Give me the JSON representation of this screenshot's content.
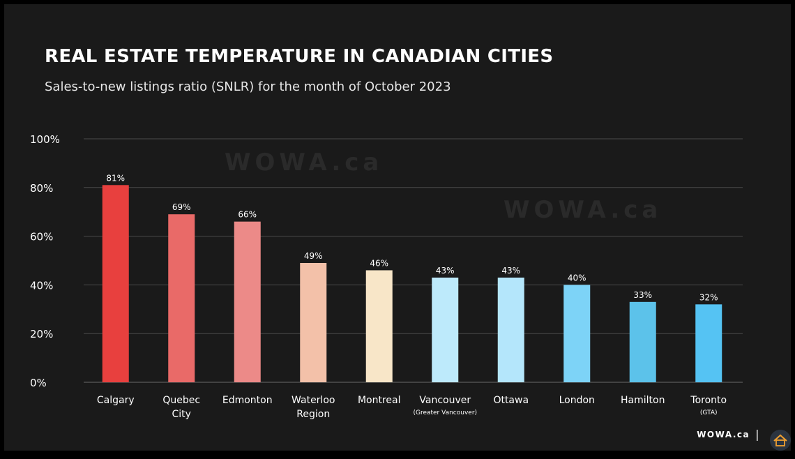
{
  "title": "REAL ESTATE TEMPERATURE IN CANADIAN CITIES",
  "subtitle": "Sales-to-new listings ratio (SNLR) for the month of October 2023",
  "watermark": "WOWA.ca",
  "footer": {
    "brand": "WOWA.ca",
    "separator": "|",
    "logo_icon": "house-logo-icon"
  },
  "chart_data": {
    "type": "bar",
    "title": "REAL ESTATE TEMPERATURE IN CANADIAN CITIES",
    "subtitle": "Sales-to-new listings ratio (SNLR) for the month of October 2023",
    "xlabel": "",
    "ylabel": "",
    "ylim": [
      0,
      100
    ],
    "yticks": [
      "0%",
      "20%",
      "40%",
      "60%",
      "80%",
      "100%"
    ],
    "grid": true,
    "legend": "none",
    "categories": [
      {
        "name": "Calgary",
        "sub": "",
        "value": 81,
        "label": "81%",
        "color": "#e8403e"
      },
      {
        "name": "Quebec City",
        "sub": "",
        "value": 69,
        "label": "69%",
        "color": "#e96a68"
      },
      {
        "name": "Edmonton",
        "sub": "",
        "value": 66,
        "label": "66%",
        "color": "#ec8a88"
      },
      {
        "name": "Waterloo Region",
        "sub": "",
        "value": 49,
        "label": "49%",
        "color": "#f3c1a9"
      },
      {
        "name": "Montreal",
        "sub": "",
        "value": 46,
        "label": "46%",
        "color": "#f8e6c8"
      },
      {
        "name": "Vancouver",
        "sub": "(Greater Vancouver)",
        "value": 43,
        "label": "43%",
        "color": "#bdeafb"
      },
      {
        "name": "Ottawa",
        "sub": "",
        "value": 43,
        "label": "43%",
        "color": "#b4e6fb"
      },
      {
        "name": "London",
        "sub": "",
        "value": 40,
        "label": "40%",
        "color": "#7dd3f7"
      },
      {
        "name": "Hamilton",
        "sub": "",
        "value": 33,
        "label": "33%",
        "color": "#5cc2ea"
      },
      {
        "name": "Toronto",
        "sub": "(GTA)",
        "value": 32,
        "label": "32%",
        "color": "#55c3f3"
      }
    ]
  }
}
